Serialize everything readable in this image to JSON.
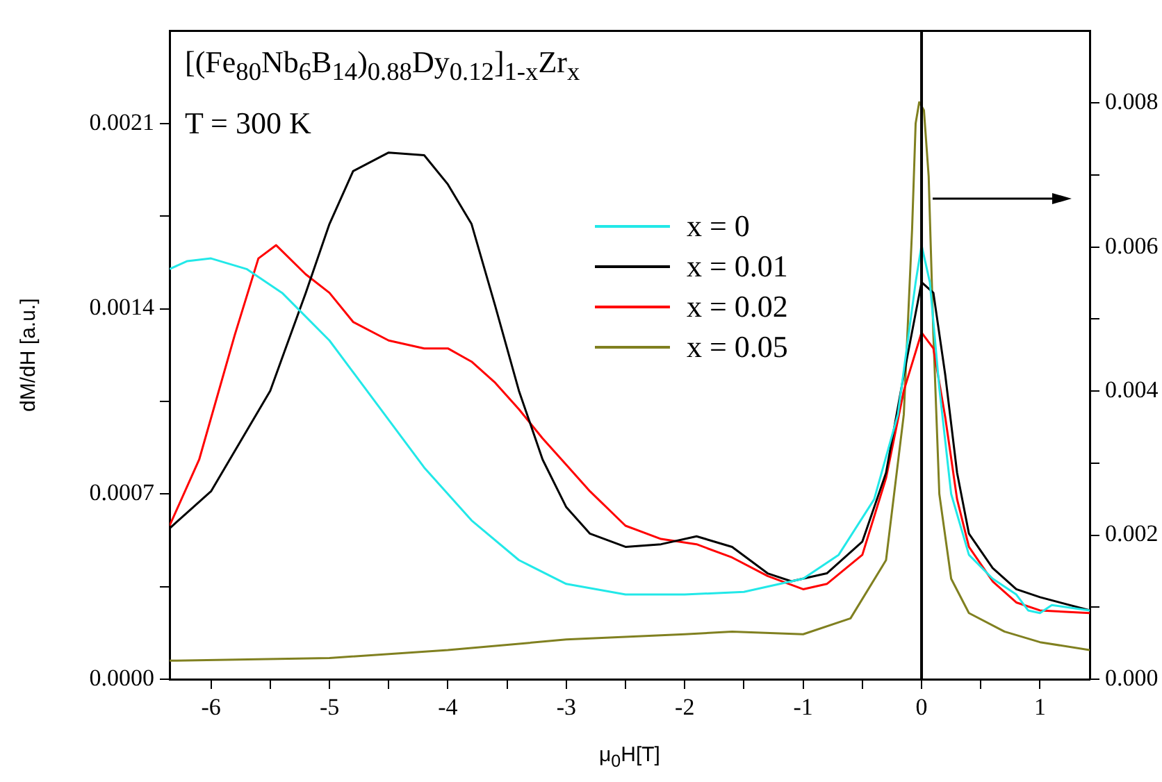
{
  "chart_data": {
    "type": "line",
    "xlabel": "μ$_{0}$H[T]",
    "ylabel": "dM/dH [a.u.]",
    "annotations": [
      "[(Fe$_{80}$Nb$_{6}$B$_{14}$)$_{0.88}$Dy$_{0.12}$]$_{1-x}$Zr$_{x}$",
      "T = 300 K"
    ],
    "xlim": [
      -6.35,
      1.42
    ],
    "xticks": [
      -6,
      {
        "value": -5.5,
        "label": null
      },
      -5,
      {
        "value": -4.5,
        "label": null
      },
      -4,
      {
        "value": -3.5,
        "label": null
      },
      -3,
      {
        "value": -2.5,
        "label": null
      },
      -2,
      {
        "value": -1.5,
        "label": null
      },
      -1,
      {
        "value": -0.5,
        "label": null
      },
      0,
      {
        "value": 0.5,
        "label": null
      },
      1
    ],
    "ylim": [
      0,
      0.00245
    ],
    "yticks": [
      {
        "value": 0,
        "label": "0.0000"
      },
      {
        "value": 0.00035,
        "label": null
      },
      0.0007,
      {
        "value": 0.00105,
        "label": null
      },
      0.0014,
      {
        "value": 0.00175,
        "label": null
      },
      0.0021
    ],
    "y2lim": [
      0,
      0.009
    ],
    "y2ticks": [
      {
        "value": 0,
        "label": "0.000"
      },
      {
        "value": 0.001,
        "label": null
      },
      {
        "value": 0.002,
        "label": "0.002"
      },
      {
        "value": 0.003,
        "label": null
      },
      {
        "value": 0.004,
        "label": "0.004"
      },
      {
        "value": 0.005,
        "label": null
      },
      {
        "value": 0.006,
        "label": "0.006"
      },
      {
        "value": 0.007,
        "label": null
      },
      {
        "value": 0.008,
        "label": "0.008"
      }
    ],
    "legend": "top",
    "marker": "none",
    "ref_lines": [
      {
        "axis": "x",
        "value": 0,
        "color": "#000000"
      }
    ],
    "series": [
      {
        "name": "x = 0",
        "color": "#22e8e8",
        "x": [
          -6.35,
          -6.2,
          -6,
          -5.7,
          -5.4,
          -5,
          -4.6,
          -4.2,
          -3.8,
          -3.4,
          -3,
          -2.5,
          -2,
          -1.5,
          -1,
          -0.7,
          -0.4,
          -0.2,
          -0.05,
          0,
          0.07,
          0.15,
          0.25,
          0.4,
          0.6,
          0.8,
          0.9,
          1,
          1.1,
          1.42
        ],
        "values": [
          0.00155,
          0.00158,
          0.00159,
          0.00155,
          0.00146,
          0.00128,
          0.00104,
          0.0008,
          0.0006,
          0.00045,
          0.00036,
          0.00032,
          0.00032,
          0.00033,
          0.00038,
          0.00047,
          0.00068,
          0.001,
          0.0015,
          0.00164,
          0.0015,
          0.0011,
          0.0007,
          0.00047,
          0.00038,
          0.00032,
          0.00026,
          0.00025,
          0.00028,
          0.00026
        ]
      },
      {
        "name": "x = 0.01",
        "color": "#000000",
        "x": [
          -6.35,
          -6.2,
          -6,
          -5.5,
          -5.2,
          -5,
          -4.8,
          -4.5,
          -4.2,
          -4,
          -3.8,
          -3.6,
          -3.4,
          -3.2,
          -3,
          -2.8,
          -2.5,
          -2.2,
          -1.9,
          -1.6,
          -1.3,
          -1.1,
          -0.8,
          -0.5,
          -0.3,
          -0.15,
          0,
          0.1,
          0.2,
          0.3,
          0.4,
          0.6,
          0.8,
          1,
          1.42
        ],
        "values": [
          0.00057,
          0.00063,
          0.00071,
          0.00109,
          0.00146,
          0.00172,
          0.00192,
          0.00199,
          0.00198,
          0.00187,
          0.00172,
          0.00141,
          0.00109,
          0.00083,
          0.00065,
          0.00055,
          0.0005,
          0.00051,
          0.00054,
          0.0005,
          0.0004,
          0.00037,
          0.0004,
          0.00052,
          0.00078,
          0.00115,
          0.0015,
          0.00146,
          0.00115,
          0.00078,
          0.00055,
          0.00042,
          0.00034,
          0.00031,
          0.00026
        ]
      },
      {
        "name": "x = 0.02",
        "color": "#ff0000",
        "x": [
          -6.35,
          -6.1,
          -5.8,
          -5.6,
          -5.45,
          -5.2,
          -5,
          -4.8,
          -4.5,
          -4.2,
          -4,
          -3.8,
          -3.6,
          -3.4,
          -3.2,
          -3,
          -2.8,
          -2.5,
          -2.2,
          -1.9,
          -1.6,
          -1.3,
          -1,
          -0.8,
          -0.5,
          -0.3,
          -0.15,
          0,
          0.1,
          0.2,
          0.3,
          0.4,
          0.6,
          0.8,
          1,
          1.42
        ],
        "values": [
          0.00058,
          0.00083,
          0.0013,
          0.00159,
          0.00164,
          0.00153,
          0.00146,
          0.00135,
          0.00128,
          0.00125,
          0.00125,
          0.0012,
          0.00112,
          0.00102,
          0.00091,
          0.00081,
          0.00071,
          0.00058,
          0.00053,
          0.00051,
          0.00046,
          0.00039,
          0.00034,
          0.00036,
          0.00047,
          0.00076,
          0.00109,
          0.00131,
          0.00125,
          0.00099,
          0.00068,
          0.0005,
          0.00037,
          0.00029,
          0.00026,
          0.00025
        ]
      },
      {
        "name": "x = 0.05",
        "color": "#808020",
        "x": [
          -6.35,
          -5,
          -4,
          -3,
          -2,
          -1.6,
          -1,
          -0.6,
          -0.3,
          -0.15,
          -0.08,
          -0.05,
          -0.02,
          0.02,
          0.06,
          0.1,
          0.15,
          0.25,
          0.4,
          0.7,
          1,
          1.42
        ],
        "values": [
          7e-05,
          8e-05,
          0.00011,
          0.00015,
          0.00017,
          0.00018,
          0.00017,
          0.00023,
          0.00045,
          0.001,
          0.0017,
          0.0021,
          0.00218,
          0.00215,
          0.0019,
          0.0013,
          0.0007,
          0.00038,
          0.00025,
          0.00018,
          0.00014,
          0.00011
        ]
      }
    ]
  }
}
